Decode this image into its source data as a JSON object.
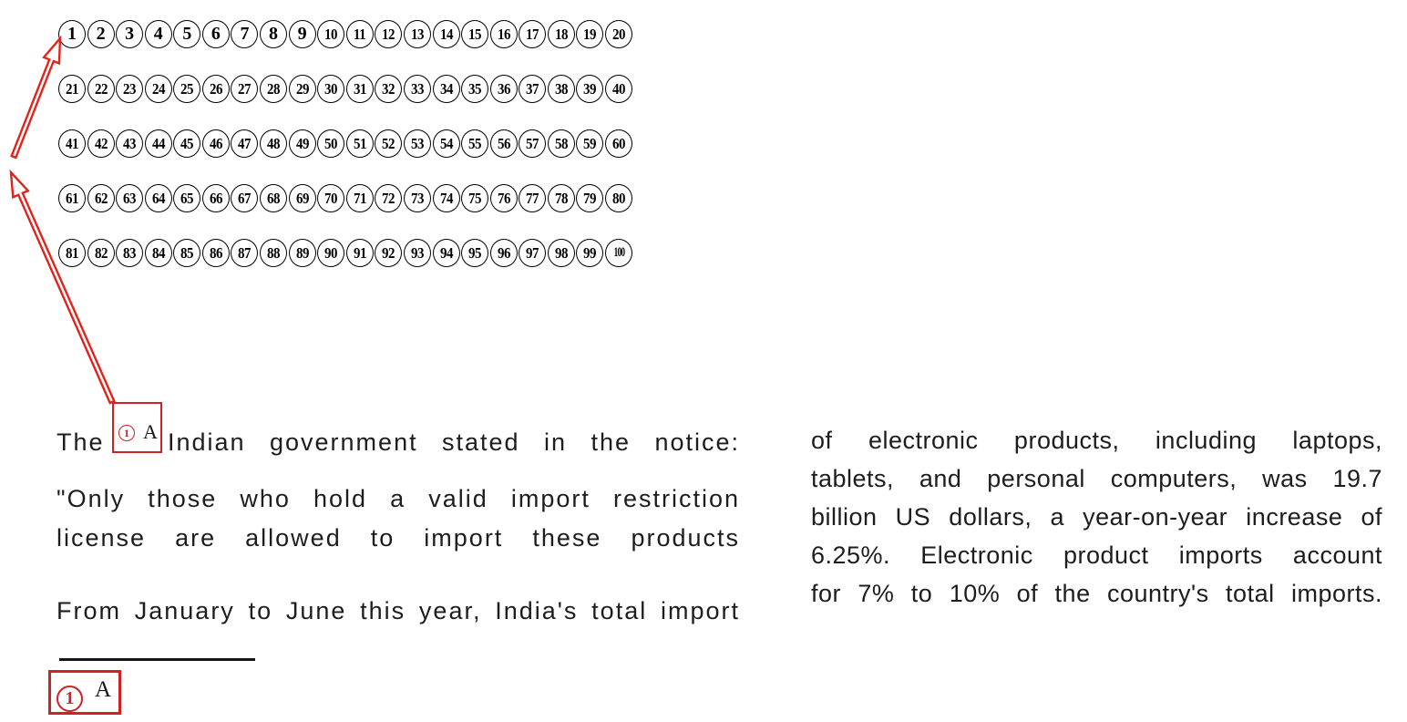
{
  "colors": {
    "marker_red": "#cf2126",
    "arrow_red": "#e2231c",
    "ink": "#1d1d1d"
  },
  "number_grid": {
    "rows": [
      [
        1,
        2,
        3,
        4,
        5,
        6,
        7,
        8,
        9,
        10,
        11,
        12,
        13,
        14,
        15,
        16,
        17,
        18,
        19,
        20
      ],
      [
        21,
        22,
        23,
        24,
        25,
        26,
        27,
        28,
        29,
        30,
        31,
        32,
        33,
        34,
        35,
        36,
        37,
        38,
        39,
        40
      ],
      [
        41,
        42,
        43,
        44,
        45,
        46,
        47,
        48,
        49,
        50,
        51,
        52,
        53,
        54,
        55,
        56,
        57,
        58,
        59,
        60
      ],
      [
        61,
        62,
        63,
        64,
        65,
        66,
        67,
        68,
        69,
        70,
        71,
        72,
        73,
        74,
        75,
        76,
        77,
        78,
        79,
        80
      ],
      [
        81,
        82,
        83,
        84,
        85,
        86,
        87,
        88,
        89,
        90,
        91,
        92,
        93,
        94,
        95,
        96,
        97,
        98,
        99,
        100
      ]
    ]
  },
  "annotations": {
    "inline_marker": {
      "circled_number": "1",
      "superscript": "A"
    },
    "footnote_marker": {
      "circled_number": "1",
      "superscript": "A"
    }
  },
  "left_column": {
    "line1_before": "The",
    "line1_after": "Indian government stated in the notice:",
    "para2_lines": [
      "\"Only those who hold a valid import restriction",
      "license are allowed to import these products"
    ],
    "para3_line": "From January to June this year, India's total import"
  },
  "right_column": {
    "lines": [
      "of electronic products, including laptops,",
      "tablets, and personal computers, was 19.7",
      "billion US dollars, a year-on-year increase of",
      "6.25%. Electronic product imports account",
      "for 7% to 10% of the country's total imports."
    ]
  }
}
